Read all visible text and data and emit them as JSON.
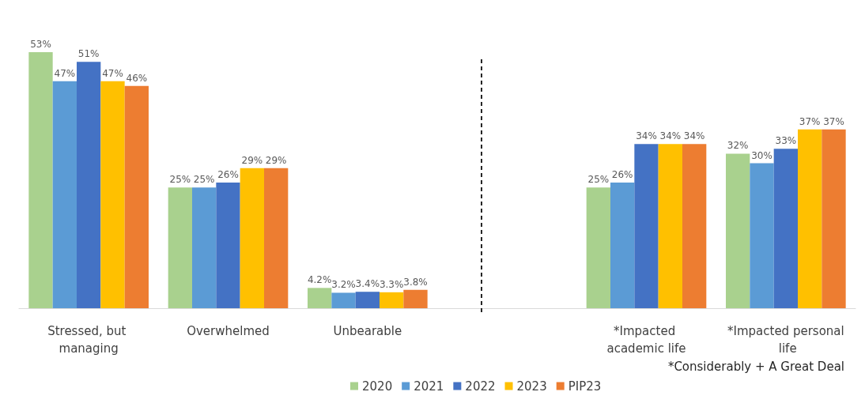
{
  "chart_data": {
    "type": "bar",
    "categories": [
      "Stressed, but managing",
      "Overwhelmed",
      "Unbearable",
      null,
      "*Impacted academic life",
      "*Impacted personal life"
    ],
    "series": [
      {
        "name": "2020",
        "color": "#a9d18e",
        "values": [
          53,
          25,
          4.2,
          null,
          25,
          32
        ],
        "value_labels": [
          "53%",
          "25%",
          "4.2%",
          null,
          "25%",
          "32%"
        ]
      },
      {
        "name": "2021",
        "color": "#5b9bd5",
        "values": [
          47,
          25,
          3.2,
          null,
          26,
          30
        ],
        "value_labels": [
          "47%",
          "25%",
          "3.2%",
          null,
          "26%",
          "30%"
        ]
      },
      {
        "name": "2022",
        "color": "#4472c4",
        "values": [
          51,
          26,
          3.4,
          null,
          34,
          33
        ],
        "value_labels": [
          "51%",
          "26%",
          "3.4%",
          null,
          "34%",
          "33%"
        ]
      },
      {
        "name": "2023",
        "color": "#ffc000",
        "values": [
          47,
          29,
          3.3,
          null,
          34,
          37
        ],
        "value_labels": [
          "47%",
          "29%",
          "3.3%",
          null,
          "34%",
          "37%"
        ]
      },
      {
        "name": "PIP23",
        "color": "#ed7d31",
        "values": [
          46,
          29,
          3.8,
          null,
          34,
          37
        ],
        "value_labels": [
          "46%",
          "29%",
          "3.8%",
          null,
          "34%",
          "37%"
        ]
      }
    ],
    "annotations": [
      "*Considerably + A Great Deal"
    ],
    "legend": "bottom",
    "grid": false
  }
}
